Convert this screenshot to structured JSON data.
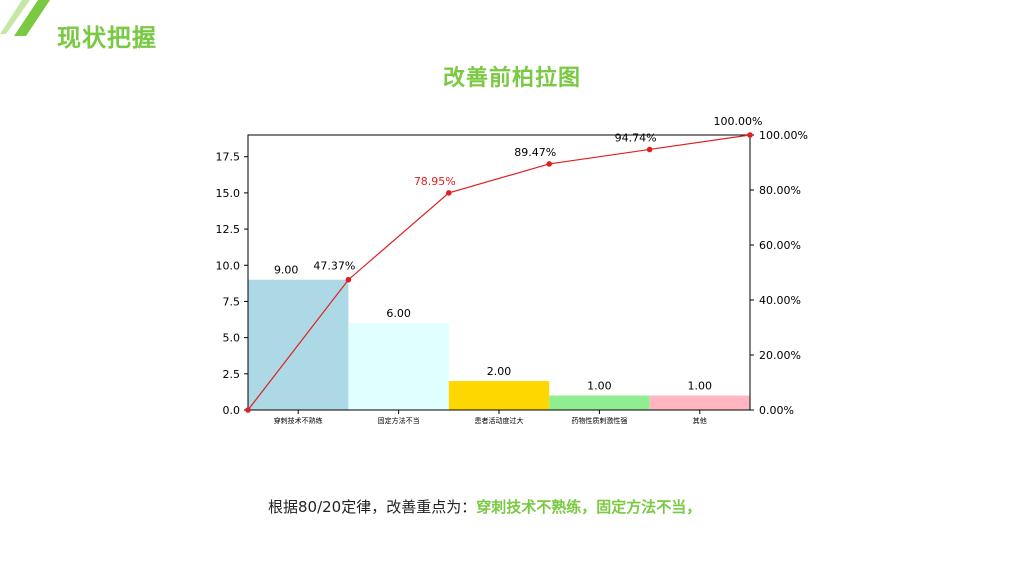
{
  "header": {
    "section_title": "现状把握",
    "chart_title": "改善前柏拉图"
  },
  "footer": {
    "prefix": "根据80/20定律，改善重点为：",
    "highlight": "穿刺技术不熟练，固定方法不当，"
  },
  "colors": {
    "accent_green": "#7ac943",
    "line_red": "#e02020"
  },
  "chart_data": {
    "type": "bar",
    "categories": [
      "穿刺技术不熟练",
      "固定方法不当",
      "患者活动度过大",
      "药物性质刺激性强",
      "其他"
    ],
    "values": [
      9,
      6,
      2,
      1,
      1
    ],
    "value_labels": [
      "9.00",
      "6.00",
      "2.00",
      "1.00",
      "1.00"
    ],
    "bar_colors": [
      "#add8e6",
      "#e0ffff",
      "#ffd700",
      "#90ee90",
      "#ffb6c1"
    ],
    "cumulative_percent": [
      0,
      47.37,
      78.95,
      89.47,
      94.74,
      100
    ],
    "cumulative_labels": [
      "",
      "47.37%",
      "78.95%",
      "89.47%",
      "94.74%",
      "100.00%"
    ],
    "y_left_ticks": [
      "0.0",
      "2.5",
      "5.0",
      "7.5",
      "10.0",
      "12.5",
      "15.0",
      "17.5"
    ],
    "y_left_tick_values": [
      0,
      2.5,
      5,
      7.5,
      10,
      12.5,
      15,
      17.5
    ],
    "y_right_ticks": [
      "0.00%",
      "20.00%",
      "40.00%",
      "60.00%",
      "80.00%",
      "100.00%"
    ],
    "y_right_tick_values": [
      0,
      20,
      40,
      60,
      80,
      100
    ],
    "ylim": [
      0,
      19
    ],
    "y2lim": [
      0,
      100
    ]
  }
}
